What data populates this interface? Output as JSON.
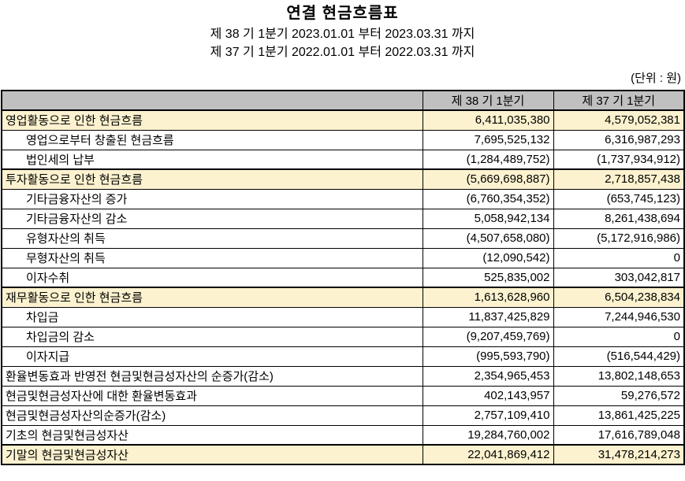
{
  "title": "연결 현금흐름표",
  "periods": [
    "제 38 기 1분기 2023.01.01 부터 2023.03.31 까지",
    "제 37 기 1분기 2022.01.01 부터 2022.03.31 까지"
  ],
  "unit_label": "(단위 : 원)",
  "colors": {
    "header_bg": "#C0C0C0",
    "highlight_bg": "#FCF2CF",
    "border": "#000000"
  },
  "table": {
    "columns": [
      "",
      "제 38 기 1분기",
      "제 37 기 1분기"
    ],
    "rows": [
      {
        "label": "영업활동으로 인한 현금흐름",
        "v1": "6,411,035,380",
        "v2": "4,579,052,381",
        "indent": 0,
        "highlight": true
      },
      {
        "label": "영업으로부터 창출된 현금흐름",
        "v1": "7,695,525,132",
        "v2": "6,316,987,293",
        "indent": 1,
        "highlight": false
      },
      {
        "label": "법인세의 납부",
        "v1": "(1,284,489,752)",
        "v2": "(1,737,934,912)",
        "indent": 1,
        "highlight": false
      },
      {
        "label": "투자활동으로 인한 현금흐름",
        "v1": "(5,669,698,887)",
        "v2": "2,718,857,438",
        "indent": 0,
        "highlight": true
      },
      {
        "label": "기타금융자산의 증가",
        "v1": "(6,760,354,352)",
        "v2": "(653,745,123)",
        "indent": 1,
        "highlight": false
      },
      {
        "label": "기타금융자산의 감소",
        "v1": "5,058,942,134",
        "v2": "8,261,438,694",
        "indent": 1,
        "highlight": false
      },
      {
        "label": "유형자산의 취득",
        "v1": "(4,507,658,080)",
        "v2": "(5,172,916,986)",
        "indent": 1,
        "highlight": false
      },
      {
        "label": "무형자산의 취득",
        "v1": "(12,090,542)",
        "v2": "0",
        "indent": 1,
        "highlight": false
      },
      {
        "label": "이자수취",
        "v1": "525,835,002",
        "v2": "303,042,817",
        "indent": 1,
        "highlight": false
      },
      {
        "label": "재무활동으로 인한 현금흐름",
        "v1": "1,613,628,960",
        "v2": "6,504,238,834",
        "indent": 0,
        "highlight": true
      },
      {
        "label": "차입금",
        "v1": "11,837,425,829",
        "v2": "7,244,946,530",
        "indent": 1,
        "highlight": false
      },
      {
        "label": "차입금의 감소",
        "v1": "(9,207,459,769)",
        "v2": "0",
        "indent": 1,
        "highlight": false
      },
      {
        "label": "이자지급",
        "v1": "(995,593,790)",
        "v2": "(516,544,429)",
        "indent": 1,
        "highlight": false
      },
      {
        "label": "환율변동효과 반영전 현금및현금성자산의 순증가(감소)",
        "v1": "2,354,965,453",
        "v2": "13,802,148,653",
        "indent": 0,
        "highlight": false
      },
      {
        "label": "현금및현금성자산에 대한 환율변동효과",
        "v1": "402,143,957",
        "v2": "59,276,572",
        "indent": 0,
        "highlight": false
      },
      {
        "label": "현금및현금성자산의순증가(감소)",
        "v1": "2,757,109,410",
        "v2": "13,861,425,225",
        "indent": 0,
        "highlight": false
      },
      {
        "label": "기초의 현금및현금성자산",
        "v1": "19,284,760,002",
        "v2": "17,616,789,048",
        "indent": 0,
        "highlight": false
      },
      {
        "label": "기말의 현금및현금성자산",
        "v1": "22,041,869,412",
        "v2": "31,478,214,273",
        "indent": 0,
        "highlight": true
      }
    ]
  }
}
